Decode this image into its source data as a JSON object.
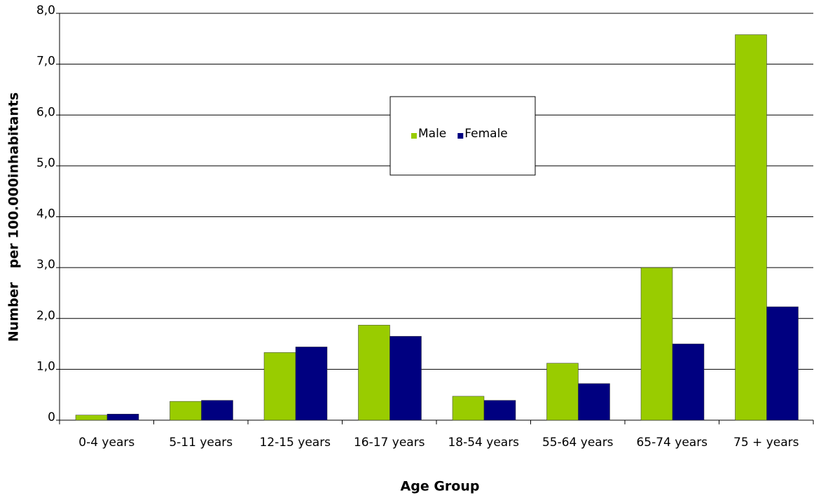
{
  "chart_data": {
    "type": "bar",
    "x_label": "Age Group",
    "y_label": "Number   per 100.000inhabitants",
    "categories": [
      "0-4 years",
      "5-11 years",
      "12-15 years",
      "16-17 years",
      "18-54 years",
      "55-64 years",
      "65-74 years",
      "75 + years"
    ],
    "series": [
      {
        "name": "Male",
        "color": "#99cc00",
        "values": [
          0.1,
          0.37,
          1.33,
          1.87,
          0.47,
          1.12,
          3.0,
          7.58
        ]
      },
      {
        "name": "Female",
        "color": "#000080",
        "values": [
          0.12,
          0.39,
          1.44,
          1.65,
          0.39,
          0.72,
          1.5,
          2.23
        ]
      }
    ],
    "ylim": [
      0,
      8
    ],
    "yticks": [
      0,
      {
        "value": 1,
        "label": "1,0"
      },
      {
        "value": 2,
        "label": "2,0"
      },
      {
        "value": 3,
        "label": "3,0"
      },
      {
        "value": 4,
        "label": "4,0"
      },
      {
        "value": 5,
        "label": "5,0"
      },
      {
        "value": 6,
        "label": "6,0"
      },
      {
        "value": 7,
        "label": "7,0"
      },
      {
        "value": 8,
        "label": "8,0"
      }
    ],
    "grid": true,
    "legend": "center"
  }
}
